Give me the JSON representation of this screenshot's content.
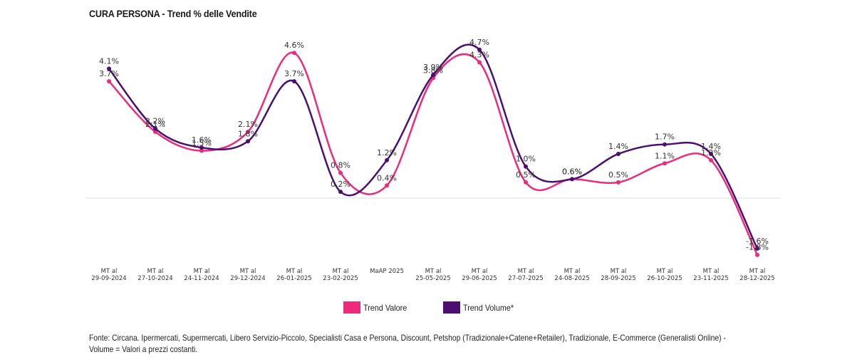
{
  "title": "CURA PERSONA - Trend % delle Vendite",
  "colors": {
    "valore": "#ee2a7b",
    "volume": "#4b0f72",
    "baseline": "#dddddd"
  },
  "legend": [
    {
      "label": "Trend Valore",
      "color": "#ee2a7b"
    },
    {
      "label": "Trend Volume*",
      "color": "#4b0f72"
    }
  ],
  "footer": {
    "line1": "Fonte: Circana. Ipermercati, Supermercati, Libero Servizio-Piccolo, Specialisti Casa e Persona, Discount, Petshop (Tradizionale+Catene+Retailer), Tradizionale, E-Commerce (Generalisti Online) -",
    "line2": "Volume = Valori a prezzi costanti."
  },
  "chart_data": {
    "type": "line",
    "title": "CURA PERSONA - Trend % delle Vendite",
    "xlabel": "",
    "ylabel": "",
    "ylim": [
      -1.8,
      4.7
    ],
    "grid": false,
    "legend_position": "bottom",
    "value_suffix": "%",
    "categories": [
      [
        "MT al",
        "29-09-2024"
      ],
      [
        "MT al",
        "27-10-2024"
      ],
      [
        "MT al",
        "24-11-2024"
      ],
      [
        "MT al",
        "29-12-2024"
      ],
      [
        "MT al",
        "26-01-2025"
      ],
      [
        "MT al",
        "23-02-2025"
      ],
      [
        "MaAP 2025",
        ""
      ],
      [
        "MT al",
        "25-05-2025"
      ],
      [
        "MT al",
        "29-06-2025"
      ],
      [
        "MT al",
        "27-07-2025"
      ],
      [
        "MT al",
        "24-08-2025"
      ],
      [
        "MT al",
        "28-09-2025"
      ],
      [
        "MT al",
        "26-10-2025"
      ],
      [
        "MT al",
        "23-11-2025"
      ],
      [
        "MT al",
        "28-12-2025"
      ]
    ],
    "series": [
      {
        "name": "Trend Valore",
        "color": "#ee2a7b",
        "values": [
          3.7,
          2.1,
          1.5,
          2.1,
          4.6,
          0.8,
          0.4,
          3.8,
          4.3,
          0.5,
          0.6,
          0.5,
          1.1,
          1.2,
          -1.8
        ]
      },
      {
        "name": "Trend Volume*",
        "color": "#4b0f72",
        "values": [
          4.1,
          2.2,
          1.6,
          1.8,
          3.7,
          0.2,
          1.2,
          3.9,
          4.7,
          1.0,
          0.6,
          1.4,
          1.7,
          1.4,
          -1.6
        ]
      }
    ]
  }
}
